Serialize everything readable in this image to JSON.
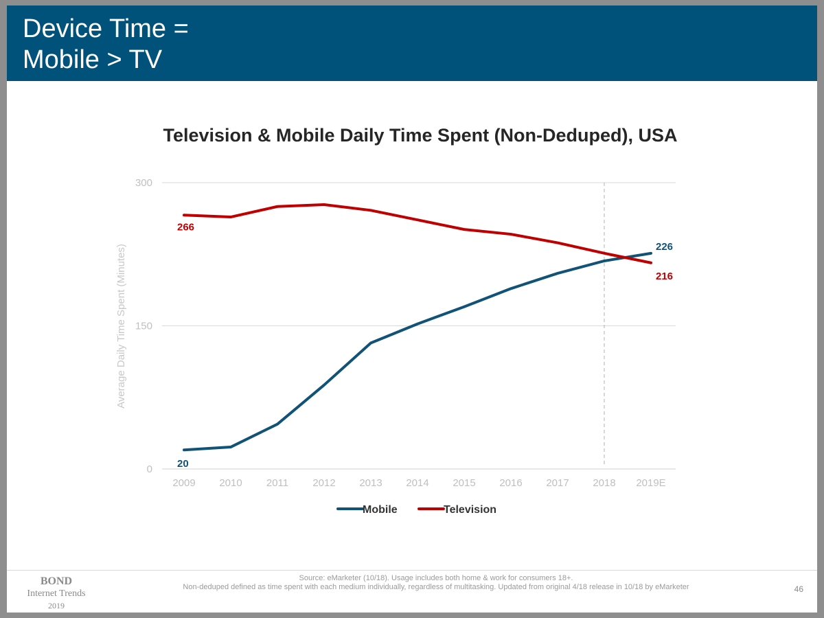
{
  "slide": {
    "title_line1": "Device Time =",
    "title_line2": "Mobile > TV",
    "page_number": "46"
  },
  "branding": {
    "name": "BOND",
    "subtitle": "Internet Trends",
    "year": "2019"
  },
  "footer": {
    "source_line1": "Source: eMarketer (10/18). Usage includes both home & work for consumers 18+.",
    "source_line2": "Non-deduped defined as time spent with each medium individually, regardless of multitasking. Updated from original 4/18 release in 10/18 by eMarketer"
  },
  "colors": {
    "header": "#00527a",
    "mobile": "#115277",
    "television": "#c00000",
    "grid": "#d9d9d9",
    "axis_text": "#bfbfbf"
  },
  "chart_data": {
    "type": "line",
    "title": "Television & Mobile Daily Time Spent (Non-Deduped), USA",
    "xlabel": "",
    "ylabel": "Average Daily Time Spent (Minutes)",
    "categories": [
      "2009",
      "2010",
      "2011",
      "2012",
      "2013",
      "2014",
      "2015",
      "2016",
      "2017",
      "2018",
      "2019E"
    ],
    "y_ticks": [
      "0",
      "150",
      "300"
    ],
    "ylim": [
      0,
      300
    ],
    "grid": true,
    "reference_line_category": "2018",
    "legend_position": "bottom",
    "series": [
      {
        "name": "Mobile",
        "color": "#115277",
        "values": [
          20,
          23,
          47,
          88,
          132,
          152,
          170,
          189,
          205,
          218,
          226
        ],
        "labels": [
          {
            "index": 0,
            "text": "20"
          },
          {
            "index": 10,
            "text": "226"
          }
        ]
      },
      {
        "name": "Television",
        "color": "#c00000",
        "values": [
          266,
          264,
          275,
          277,
          271,
          261,
          251,
          246,
          237,
          226,
          216
        ],
        "labels": [
          {
            "index": 0,
            "text": "266"
          },
          {
            "index": 10,
            "text": "216"
          }
        ]
      }
    ]
  }
}
